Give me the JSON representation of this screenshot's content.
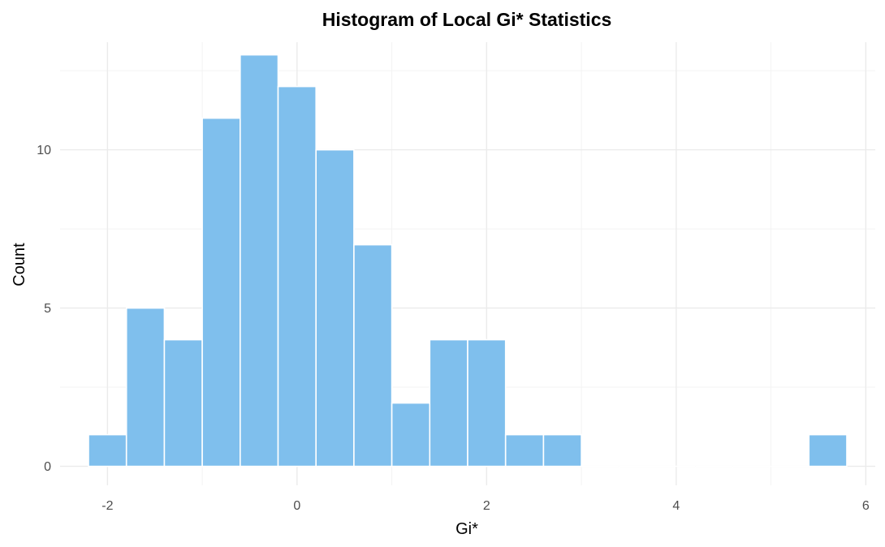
{
  "chart_data": {
    "type": "histogram",
    "title": "Histogram of Local Gi* Statistics",
    "xlabel": "Gi*",
    "ylabel": "Count",
    "xlim": [
      -2.5,
      6.1
    ],
    "ylim": [
      -0.6,
      13.4
    ],
    "x_ticks": [
      -2,
      0,
      2,
      4,
      6
    ],
    "x_tick_labels": [
      "-2",
      "0",
      "2",
      "4",
      "6"
    ],
    "y_ticks": [
      0,
      5,
      10
    ],
    "y_tick_labels": [
      "0",
      "5",
      "10"
    ],
    "x_minor_ticks": [
      -1,
      1,
      3,
      5
    ],
    "y_minor_ticks": [
      2.5,
      7.5,
      12.5
    ],
    "grid": true,
    "bar_color": "#7fbfed",
    "bins": [
      {
        "x0": -2.2,
        "x1": -1.8,
        "count": 1
      },
      {
        "x0": -1.8,
        "x1": -1.4,
        "count": 5
      },
      {
        "x0": -1.4,
        "x1": -1.0,
        "count": 4
      },
      {
        "x0": -1.0,
        "x1": -0.6,
        "count": 11
      },
      {
        "x0": -0.6,
        "x1": -0.2,
        "count": 13
      },
      {
        "x0": -0.2,
        "x1": 0.2,
        "count": 12
      },
      {
        "x0": 0.2,
        "x1": 0.6,
        "count": 10
      },
      {
        "x0": 0.6,
        "x1": 1.0,
        "count": 7
      },
      {
        "x0": 1.0,
        "x1": 1.4,
        "count": 2
      },
      {
        "x0": 1.4,
        "x1": 1.8,
        "count": 4
      },
      {
        "x0": 1.8,
        "x1": 2.2,
        "count": 4
      },
      {
        "x0": 2.2,
        "x1": 2.6,
        "count": 1
      },
      {
        "x0": 2.6,
        "x1": 3.0,
        "count": 1
      },
      {
        "x0": 3.0,
        "x1": 3.4,
        "count": 0
      },
      {
        "x0": 3.4,
        "x1": 3.8,
        "count": 0
      },
      {
        "x0": 3.8,
        "x1": 4.2,
        "count": 0
      },
      {
        "x0": 4.2,
        "x1": 4.6,
        "count": 0
      },
      {
        "x0": 4.6,
        "x1": 5.0,
        "count": 0
      },
      {
        "x0": 5.0,
        "x1": 5.4,
        "count": 0
      },
      {
        "x0": 5.4,
        "x1": 5.8,
        "count": 1
      }
    ]
  }
}
